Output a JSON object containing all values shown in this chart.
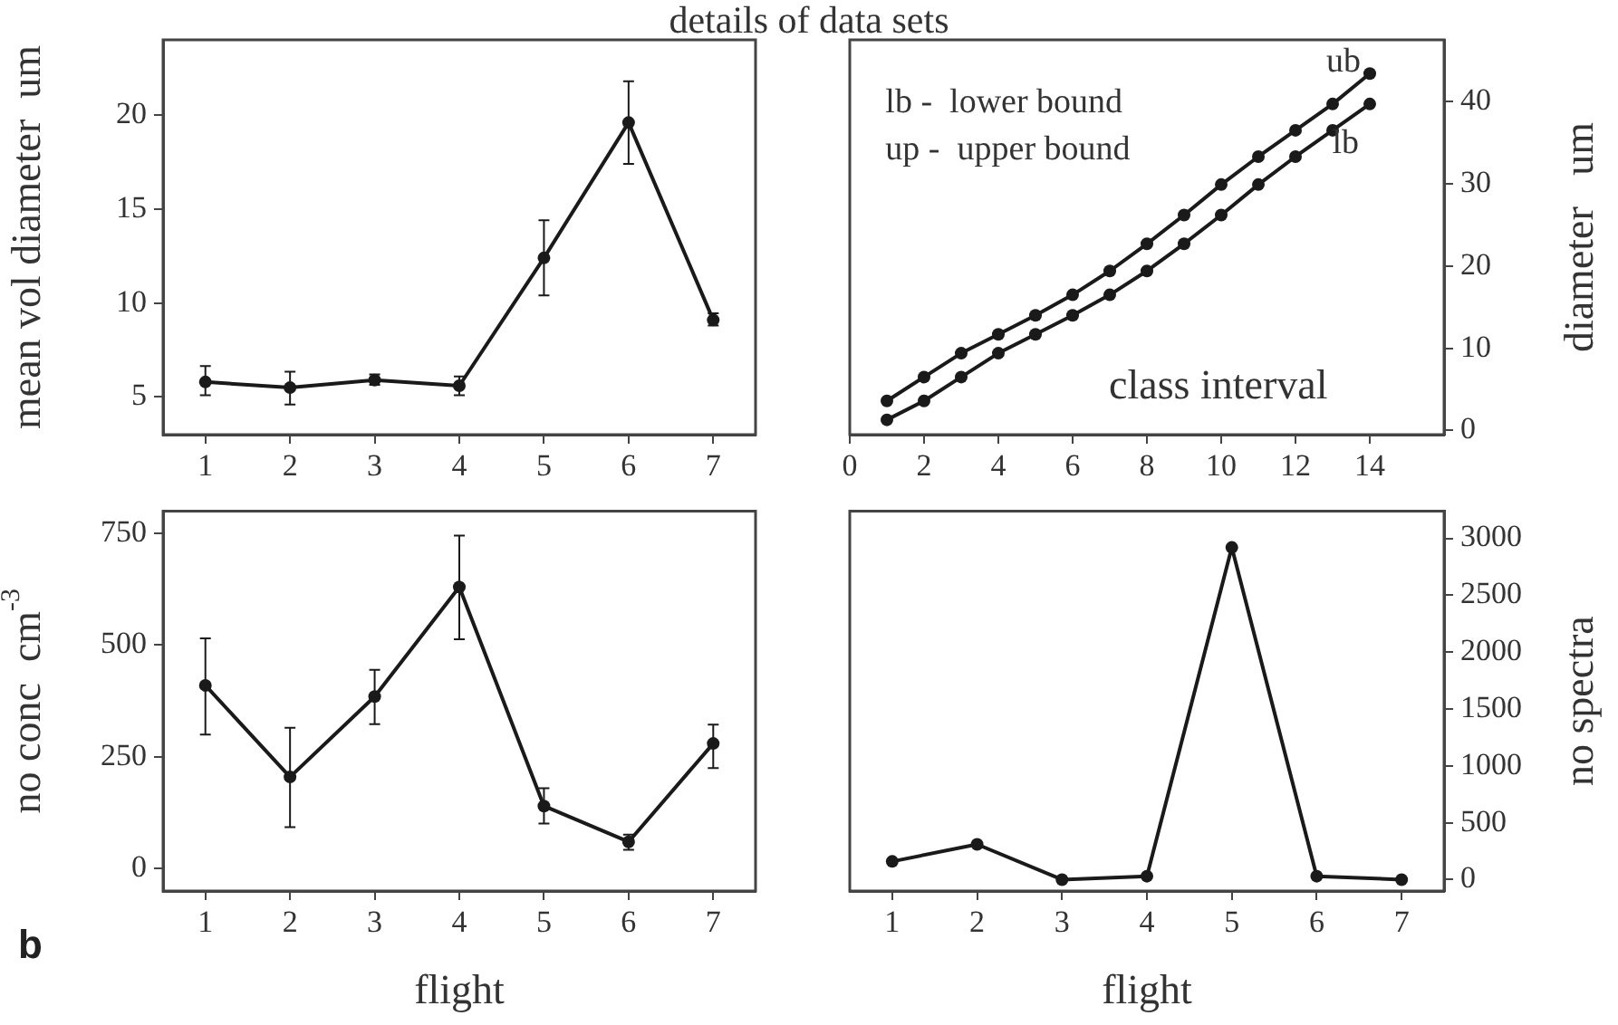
{
  "chart_data": [
    {
      "type": "line",
      "title": "details of data sets",
      "ylabel": "mean vol diameter  um",
      "categories": [
        "1",
        "2",
        "3",
        "4",
        "5",
        "6",
        "7"
      ],
      "marker": "circle",
      "line_style": "solid",
      "ylim": [
        3,
        24
      ],
      "yticks": [
        5,
        10,
        15,
        20
      ],
      "series": [
        {
          "color": "#1a1a1a",
          "values": [
            5.8,
            5.5,
            5.9,
            5.6,
            12.4,
            19.6,
            9.1
          ],
          "errors": [
            [
              5.1,
              6.65
            ],
            [
              4.6,
              6.35
            ],
            [
              5.65,
              6.2
            ],
            [
              5.1,
              6.1
            ],
            [
              10.4,
              14.4
            ],
            [
              17.4,
              21.8
            ],
            [
              8.8,
              9.45
            ]
          ]
        }
      ]
    },
    {
      "type": "line",
      "xlabel": "class interval",
      "ylabel": "diameter   um",
      "marker": "circle",
      "line_style": "solid",
      "xlim": [
        0,
        16
      ],
      "xticks": [
        0,
        2,
        4,
        6,
        8,
        10,
        12,
        14
      ],
      "ylim": [
        -0.5,
        47.5
      ],
      "yticks": [
        0,
        10,
        20,
        30,
        40
      ],
      "annotations": [
        "lb -  lower bound",
        "up -  upper bound"
      ],
      "series": [
        {
          "name": "ub",
          "color": "#1a1a1a",
          "x": [
            1,
            2,
            3,
            4,
            5,
            6,
            7,
            8,
            9,
            10,
            11,
            12,
            13,
            14
          ],
          "values": [
            3.6,
            6.5,
            9.4,
            11.7,
            14.0,
            16.5,
            19.4,
            22.7,
            26.2,
            29.9,
            33.3,
            36.5,
            39.7,
            43.4
          ]
        },
        {
          "name": "lb",
          "color": "#1a1a1a",
          "x": [
            1,
            2,
            3,
            4,
            5,
            6,
            7,
            8,
            9,
            10,
            11,
            12,
            13,
            14
          ],
          "values": [
            1.3,
            3.6,
            6.5,
            9.4,
            11.7,
            14.0,
            16.5,
            19.4,
            22.7,
            26.2,
            29.9,
            33.3,
            36.5,
            39.7
          ]
        }
      ]
    },
    {
      "type": "line",
      "xlabel": "flight",
      "ylabel": "no conc  cm$^{-3}$",
      "categories": [
        "1",
        "2",
        "3",
        "4",
        "5",
        "6",
        "7"
      ],
      "marker": "circle",
      "line_style": "solid",
      "ylim": [
        -50,
        800
      ],
      "yticks": [
        0,
        250,
        500,
        750
      ],
      "annotations": [
        "b"
      ],
      "series": [
        {
          "color": "#1a1a1a",
          "values": [
            410,
            205,
            385,
            630,
            140,
            60,
            280
          ],
          "errors": [
            [
              300,
              515
            ],
            [
              93,
              315
            ],
            [
              323,
              445
            ],
            [
              513,
              745
            ],
            [
              101,
              180
            ],
            [
              42,
              76
            ],
            [
              225,
              322
            ]
          ]
        }
      ]
    },
    {
      "type": "line",
      "xlabel": "flight",
      "ylabel": "no spectra",
      "categories": [
        "1",
        "2",
        "3",
        "4",
        "5",
        "6",
        "7"
      ],
      "marker": "circle",
      "line_style": "solid",
      "ylim": [
        -100,
        3240
      ],
      "yticks": [
        0,
        500,
        1000,
        1500,
        2000,
        2500,
        3000
      ],
      "series": [
        {
          "color": "#1a1a1a",
          "values": [
            160,
            310,
            0,
            30,
            2920,
            30,
            0
          ]
        }
      ]
    }
  ]
}
